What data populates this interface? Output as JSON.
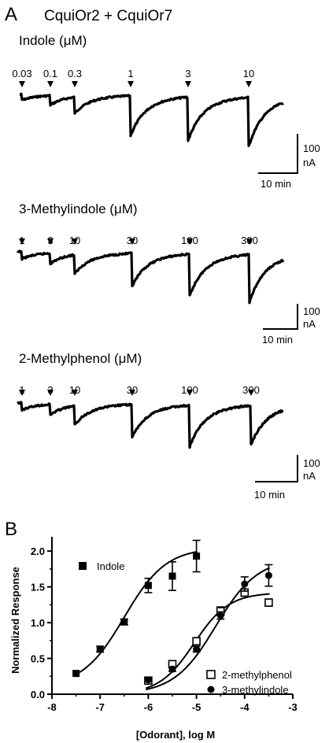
{
  "panel_a": {
    "letter": "A",
    "title": "CquiOr2 + CquiOr7",
    "traces": [
      {
        "label": "Indole (μM)",
        "concentrations": [
          "0.03",
          "0.1",
          "0.3",
          "1",
          "3",
          "10"
        ],
        "response_depths": [
          0.06,
          0.1,
          0.17,
          0.42,
          0.46,
          0.52
        ]
      },
      {
        "label": "3-Methylindole (μM)",
        "concentrations": [
          "1",
          "3",
          "10",
          "30",
          "100",
          "300"
        ],
        "response_depths": [
          0.08,
          0.12,
          0.22,
          0.38,
          0.48,
          0.55
        ]
      },
      {
        "label": "2-Methylphenol (μM)",
        "concentrations": [
          "1",
          "3",
          "10",
          "30",
          "100",
          "300"
        ],
        "response_depths": [
          0.08,
          0.12,
          0.22,
          0.38,
          0.48,
          0.45
        ]
      }
    ],
    "scale_bar": {
      "current": "100",
      "current_unit": "nA",
      "time": "10 min"
    }
  },
  "panel_b": {
    "letter": "B",
    "chart_data": {
      "type": "scatter",
      "xlabel": "[Odorant], log M",
      "ylabel": "Normalized Response",
      "xlim": [
        -8,
        -3
      ],
      "ylim": [
        0,
        2.2
      ],
      "x_ticks": [
        "-8",
        "-7",
        "-6",
        "-5",
        "-4",
        "-3"
      ],
      "y_ticks": [
        "0.0",
        "0.5",
        "1.0",
        "1.5",
        "2.0"
      ],
      "series": [
        {
          "name": "Indole",
          "marker": "filled-square",
          "x": [
            -7.5,
            -7.0,
            -6.5,
            -6.0,
            -5.5,
            -5.0
          ],
          "y": [
            0.29,
            0.63,
            1.01,
            1.52,
            1.65,
            1.93
          ],
          "err": [
            0,
            0.04,
            0.04,
            0.1,
            0.2,
            0.22
          ],
          "fit": {
            "bottom": 0.1,
            "top": 2.05,
            "logEC50": -6.5,
            "hill": 1.0
          }
        },
        {
          "name": "2-methylphenol",
          "marker": "open-square",
          "x": [
            -6.0,
            -5.5,
            -5.0,
            -4.5,
            -4.0,
            -3.5
          ],
          "y": [
            0.19,
            0.42,
            0.74,
            1.16,
            1.42,
            1.28
          ],
          "err": [
            0,
            0.03,
            0.05,
            0.06,
            0.05,
            0.05
          ],
          "fit": {
            "bottom": 0.0,
            "top": 1.42,
            "logEC50": -5.05,
            "hill": 1.2
          }
        },
        {
          "name": "3-methylindole",
          "marker": "filled-circle",
          "x": [
            -6.0,
            -5.5,
            -5.0,
            -4.5,
            -4.0,
            -3.5
          ],
          "y": [
            0.2,
            0.35,
            0.63,
            1.1,
            1.54,
            1.66
          ],
          "err": [
            0,
            0.03,
            0.04,
            0.05,
            0.1,
            0.15
          ],
          "fit": {
            "bottom": 0.0,
            "top": 1.9,
            "logEC50": -4.6,
            "hill": 1.0
          }
        }
      ],
      "legend": {
        "placement": "in-plot"
      }
    }
  }
}
